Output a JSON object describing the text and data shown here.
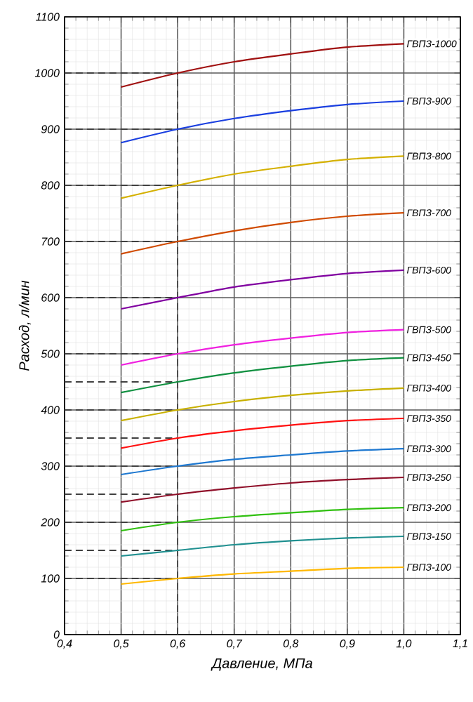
{
  "chart_data": {
    "type": "line",
    "xlabel": "Давление, МПа",
    "ylabel": "Расход, л/мин",
    "x": [
      0.5,
      0.6,
      0.7,
      0.8,
      0.9,
      1.0
    ],
    "xlim": [
      0.4,
      1.1
    ],
    "ylim": [
      0,
      1100
    ],
    "xticks": [
      {
        "value": 0.4,
        "label": "0,4"
      },
      {
        "value": 0.5,
        "label": "0,5"
      },
      {
        "value": 0.6,
        "label": "0,6"
      },
      {
        "value": 0.7,
        "label": "0,7"
      },
      {
        "value": 0.8,
        "label": "0,8"
      },
      {
        "value": 0.9,
        "label": "0,9"
      },
      {
        "value": 1.0,
        "label": "1,0"
      },
      {
        "value": 1.1,
        "label": "1,1"
      }
    ],
    "yticks": [
      0,
      100,
      200,
      300,
      400,
      500,
      600,
      700,
      800,
      900,
      1000,
      1100
    ],
    "grid": true,
    "legend": false,
    "series": [
      {
        "name": "ГВПЗ-1000",
        "color": "#a01010",
        "values": [
          975,
          1000,
          1020,
          1034,
          1046,
          1052
        ]
      },
      {
        "name": "ГВПЗ-900",
        "color": "#1a3fe0",
        "values": [
          876,
          900,
          919,
          933,
          944,
          950
        ]
      },
      {
        "name": "ГВПЗ-800",
        "color": "#d4b000",
        "values": [
          777,
          800,
          820,
          834,
          846,
          852
        ]
      },
      {
        "name": "ГВПЗ-700",
        "color": "#d04a00",
        "values": [
          678,
          700,
          719,
          734,
          745,
          751
        ]
      },
      {
        "name": "ГВПЗ-600",
        "color": "#8000a0",
        "values": [
          580,
          600,
          619,
          632,
          643,
          649
        ]
      },
      {
        "name": "ГВПЗ-500",
        "color": "#f020e0",
        "values": [
          480,
          500,
          516,
          528,
          538,
          543
        ]
      },
      {
        "name": "ГВПЗ-450",
        "color": "#109040",
        "values": [
          431,
          450,
          466,
          478,
          488,
          493
        ]
      },
      {
        "name": "ГВПЗ-400",
        "color": "#c8b000",
        "values": [
          381,
          400,
          415,
          426,
          434,
          439
        ]
      },
      {
        "name": "ГВПЗ-350",
        "color": "#ff1010",
        "values": [
          332,
          350,
          363,
          373,
          381,
          385
        ]
      },
      {
        "name": "ГВПЗ-300",
        "color": "#1e78d0",
        "values": [
          285,
          300,
          312,
          320,
          327,
          331
        ]
      },
      {
        "name": "ГВПЗ-250",
        "color": "#90102a",
        "values": [
          236,
          250,
          261,
          270,
          276,
          280
        ]
      },
      {
        "name": "ГВПЗ-200",
        "color": "#30c010",
        "values": [
          185,
          200,
          210,
          217,
          223,
          226
        ]
      },
      {
        "name": "ГВПЗ-150",
        "color": "#209090",
        "values": [
          140,
          150,
          160,
          167,
          172,
          175
        ]
      },
      {
        "name": "ГВПЗ-100",
        "color": "#ffb800",
        "values": [
          90,
          100,
          108,
          113,
          118,
          120
        ]
      }
    ],
    "ref_lines": [
      {
        "axis": "x",
        "value": 0.6,
        "line_style": "dashed"
      },
      {
        "axis": "y",
        "value": 100,
        "line_style": "dashed"
      },
      {
        "axis": "y",
        "value": 150,
        "line_style": "dashed"
      },
      {
        "axis": "y",
        "value": 200,
        "line_style": "dashed"
      },
      {
        "axis": "y",
        "value": 250,
        "line_style": "dashed"
      },
      {
        "axis": "y",
        "value": 300,
        "line_style": "dashed"
      },
      {
        "axis": "y",
        "value": 350,
        "line_style": "dashed"
      },
      {
        "axis": "y",
        "value": 400,
        "line_style": "dashed"
      },
      {
        "axis": "y",
        "value": 450,
        "line_style": "dashed"
      },
      {
        "axis": "y",
        "value": 500,
        "line_style": "dashed"
      },
      {
        "axis": "y",
        "value": 600,
        "line_style": "dashed"
      },
      {
        "axis": "y",
        "value": 700,
        "line_style": "dashed"
      },
      {
        "axis": "y",
        "value": 800,
        "line_style": "dashed"
      },
      {
        "axis": "y",
        "value": 900,
        "line_style": "dashed"
      },
      {
        "axis": "y",
        "value": 1000,
        "line_style": "dashed"
      }
    ]
  }
}
